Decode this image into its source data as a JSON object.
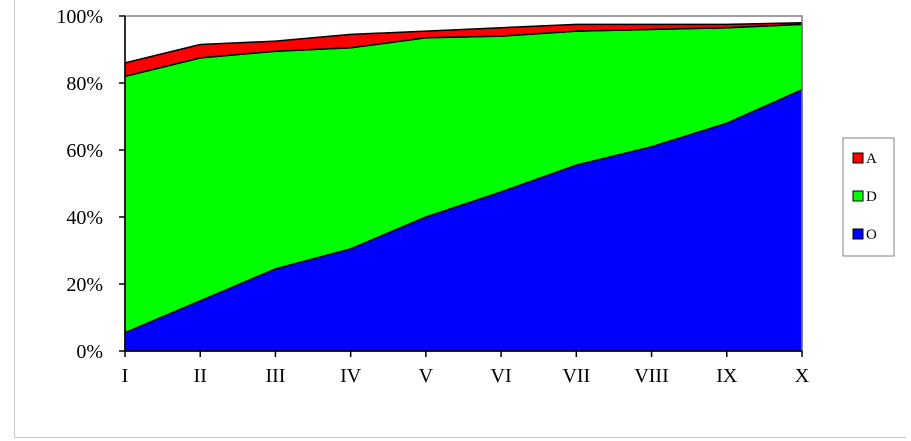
{
  "chart_data": {
    "type": "area",
    "stacked": true,
    "normalized_percent": true,
    "categories": [
      "I",
      "II",
      "III",
      "IV",
      "V",
      "VI",
      "VII",
      "VIII",
      "IX",
      "X"
    ],
    "series": [
      {
        "name": "O",
        "color": "#0000ff",
        "values": [
          5.5,
          15,
          24.5,
          30.5,
          40,
          47.5,
          55.5,
          61,
          68,
          78
        ]
      },
      {
        "name": "D",
        "color": "#00ff00",
        "values": [
          76.5,
          72.5,
          65,
          60,
          53.5,
          46.5,
          40,
          35,
          28.5,
          19.5
        ]
      },
      {
        "name": "A",
        "color": "#ff0000",
        "values": [
          4,
          4,
          3,
          4,
          2,
          2.5,
          2,
          1.5,
          1,
          0.5
        ]
      }
    ],
    "yticks": [
      "0%",
      "20%",
      "40%",
      "60%",
      "80%",
      "100%"
    ],
    "ylim": [
      0,
      100
    ],
    "legend": {
      "position": "right",
      "order": [
        "A",
        "D",
        "O"
      ]
    },
    "grid": false
  }
}
